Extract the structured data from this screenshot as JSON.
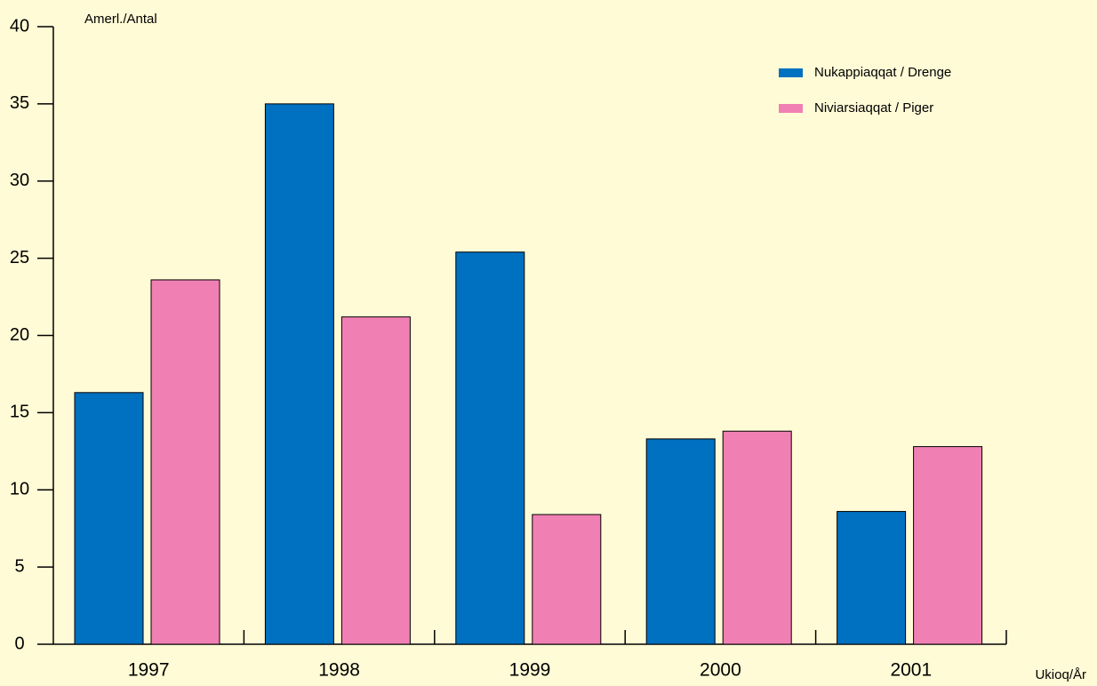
{
  "chart_data": {
    "type": "bar",
    "ylabel": "Amerl./Antal",
    "xlabel": "Ukioq/År",
    "categories": [
      "1997",
      "1998",
      "1999",
      "2000",
      "2001"
    ],
    "series": [
      {
        "name": "Nukappiaqqat / Drenge",
        "color": "#0070c0",
        "values": [
          16.3,
          35,
          25.4,
          13.3,
          8.6
        ]
      },
      {
        "name": "Niviarsiaqqat / Piger",
        "color": "#f080b4",
        "values": [
          23.6,
          21.2,
          8.4,
          13.8,
          12.8
        ]
      }
    ],
    "ylim": [
      0,
      40
    ],
    "yticks": [
      0,
      5,
      10,
      15,
      20,
      25,
      30,
      35,
      40
    ],
    "legend": "upper right"
  }
}
